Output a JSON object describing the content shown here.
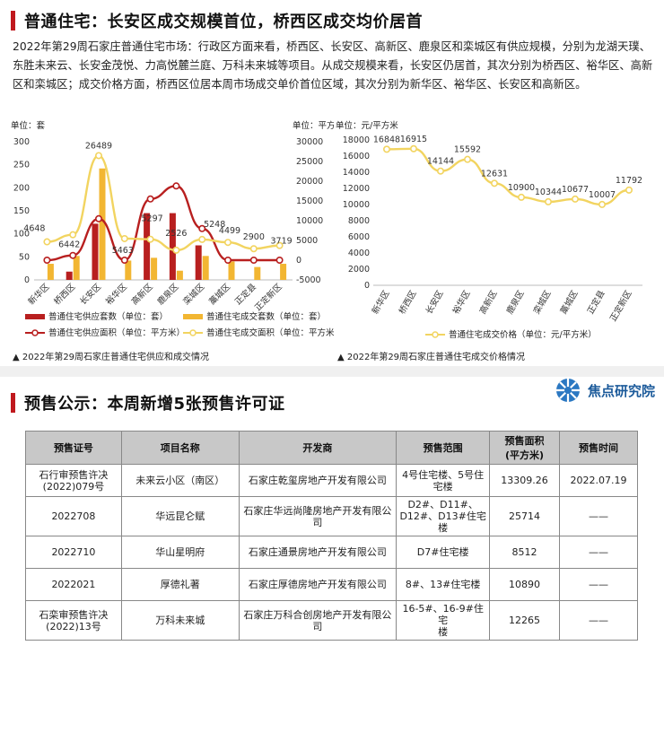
{
  "section1": {
    "title": "普通住宅：长安区成交规模首位，桥西区成交均价居首",
    "intro": "2022年第29周石家庄普通住宅市场：行政区方面来看，桥西区、长安区、高新区、鹿泉区和栾城区有供应规模，分别为龙湖天璞、东胜未来云、长安金茂悦、力高悦麓兰庭、万科未来城等项目。从成交规模来看，长安区仍居首，其次分别为桥西区、裕华区、高新区和栾城区；成交价格方面，桥西区位居本周市场成交单价首位区域，其次分别为新华区、裕华区、长安区和高新区。"
  },
  "section2": {
    "title": "预售公示：本周新增5张预售许可证",
    "logo_text": "焦点研究院"
  },
  "chart_data": [
    {
      "type": "bar",
      "caption": "▲ 2022年第29周石家庄普通住宅供应和成交情况",
      "left_unit": "单位：套",
      "right_unit": "单位：平方米",
      "categories": [
        "新华区",
        "桥西区",
        "长安区",
        "裕华区",
        "高新区",
        "鹿泉区",
        "栾城区",
        "藁城区",
        "正定县",
        "正定新区"
      ],
      "ylim_left": [
        0,
        300
      ],
      "yticks_left": [
        0,
        50,
        100,
        150,
        200,
        250,
        300
      ],
      "ylim_right": [
        -5000,
        30000
      ],
      "yticks_right": [
        -5000,
        0,
        5000,
        10000,
        15000,
        20000,
        25000,
        30000
      ],
      "series": [
        {
          "name": "普通住宅供应套数（单位：套）",
          "kind": "bar",
          "axis": "left",
          "color": "#b81f1f",
          "values": [
            0,
            18,
            122,
            0,
            145,
            145,
            75,
            0,
            0,
            0
          ]
        },
        {
          "name": "普通住宅成交套数（单位：套）",
          "kind": "bar",
          "axis": "left",
          "color": "#f2b632",
          "values": [
            35,
            52,
            242,
            42,
            48,
            20,
            52,
            40,
            28,
            35
          ]
        },
        {
          "name": "普通住宅供应面积（单位：平方米）",
          "kind": "line",
          "axis": "right",
          "color": "#b81f1f",
          "values": [
            0,
            1200,
            10500,
            0,
            15500,
            18800,
            8000,
            0,
            0,
            0
          ]
        },
        {
          "name": "普通住宅成交面积（单位：平方米）",
          "kind": "line",
          "axis": "right",
          "color": "#f2d460",
          "values": [
            4648,
            6442,
            26489,
            5463,
            5297,
            2526,
            5248,
            4499,
            2900,
            3719
          ]
        }
      ],
      "data_labels": [
        "4648",
        "6442",
        "26489",
        "5463",
        "5297",
        "2526",
        "5248",
        "4499",
        "2900",
        "3719"
      ]
    },
    {
      "type": "line",
      "caption": "▲ 2022年第29周石家庄普通住宅成交价格情况",
      "unit": "单位：元/平方米",
      "categories": [
        "新华区",
        "桥西区",
        "长安区",
        "裕华区",
        "高新区",
        "鹿泉区",
        "栾城区",
        "藁城区",
        "正定县",
        "正定新区"
      ],
      "ylim": [
        0,
        18000
      ],
      "yticks": [
        0,
        2000,
        4000,
        6000,
        8000,
        10000,
        12000,
        14000,
        16000,
        18000
      ],
      "series": [
        {
          "name": "普通住宅成交价格（单位：元/平方米）",
          "color": "#f2d460",
          "values": [
            16848,
            16915,
            14144,
            15592,
            12631,
            10900,
            10344,
            10677,
            10007,
            11792
          ]
        }
      ]
    }
  ],
  "presale_table": {
    "headers": [
      "预售证号",
      "项目名称",
      "开发商",
      "预售范围",
      "预售面积\n(平方米)",
      "预售时间"
    ],
    "rows": [
      [
        "石行审预售许决\n(2022)079号",
        "未来云小区（南区）",
        "石家庄乾玺房地产开发有限公司",
        "4号住宅楼、5号住\n宅楼",
        "13309.26",
        "2022.07.19"
      ],
      [
        "2022708",
        "华远昆仑赋",
        "石家庄华远尚隆房地产开发有限公司",
        "D2#、D11#、\nD12#、D13#住宅\n楼",
        "25714",
        "——"
      ],
      [
        "2022710",
        "华山星明府",
        "石家庄通景房地产开发有限公司",
        "D7#住宅楼",
        "8512",
        "——"
      ],
      [
        "2022021",
        "厚德礼著",
        "石家庄厚德房地产开发有限公司",
        "8#、13#住宅楼",
        "10890",
        "——"
      ],
      [
        "石栾审预售许决\n(2022)13号",
        "万科未来城",
        "石家庄万科合创房地产开发有限公司",
        "16-5#、16-9#住宅\n楼",
        "12265",
        "——"
      ]
    ]
  }
}
